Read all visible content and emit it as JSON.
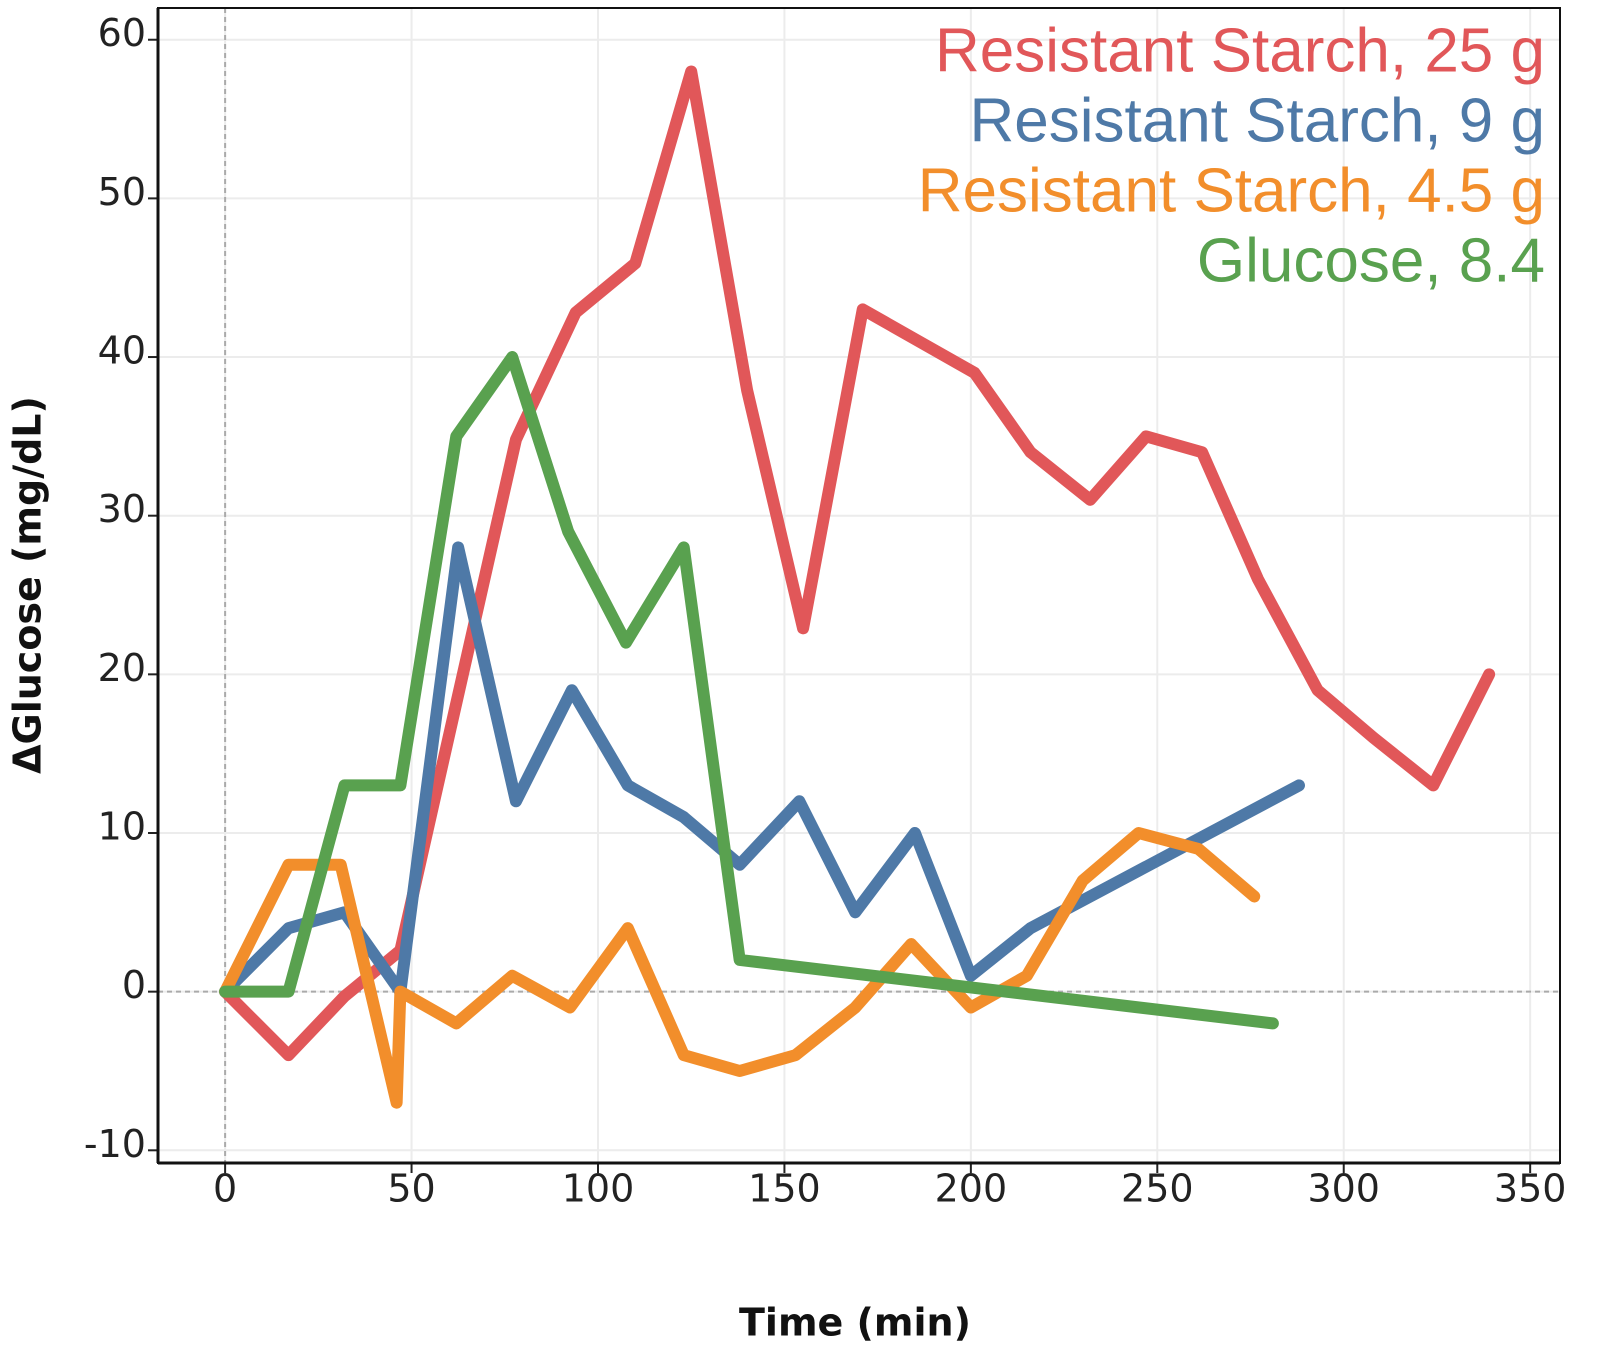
{
  "chart_data": {
    "type": "line",
    "xlabel": "Time (min)",
    "ylabel": "ΔGlucose (mg/dL)",
    "xlim": [
      -18,
      358
    ],
    "ylim": [
      -10.8,
      62
    ],
    "xticks": [
      0,
      50,
      100,
      150,
      200,
      250,
      300,
      350
    ],
    "yticks": [
      -10,
      0,
      10,
      20,
      30,
      40,
      50,
      60
    ],
    "grid": true,
    "zero_lines": true,
    "legend": "upper right",
    "series": [
      {
        "name": "Resistant Starch, 25 g",
        "color": "#e15759",
        "x": [
          0,
          17,
          32,
          47,
          78,
          94,
          110,
          125,
          140,
          155,
          171,
          186,
          201,
          216,
          232,
          247,
          262,
          277,
          293,
          308,
          324,
          339
        ],
        "values": [
          0,
          -4,
          -0.3,
          2.6,
          34.8,
          42.8,
          45.9,
          58,
          37.9,
          22.9,
          43,
          41,
          39,
          34,
          31,
          35,
          34,
          26,
          19,
          16,
          13,
          20
        ]
      },
      {
        "name": "Resistant Starch, 9 g",
        "color": "#4e79a7",
        "x": [
          0,
          17,
          32,
          47,
          62.5,
          78,
          93,
          108,
          123,
          138,
          154,
          169,
          185,
          200,
          216,
          288
        ],
        "values": [
          0,
          4,
          5,
          0,
          28,
          12,
          19,
          13,
          11,
          8,
          12,
          5,
          10,
          1,
          4,
          13
        ]
      },
      {
        "name": "Resistant Starch, 4.5 g",
        "color": "#f28e2b",
        "x": [
          0,
          17,
          31,
          46,
          47,
          62,
          77,
          92.5,
          108,
          123,
          138,
          153,
          169,
          184,
          200,
          215,
          230,
          245,
          261,
          276
        ],
        "values": [
          0,
          8,
          8,
          -7,
          0,
          -2,
          1,
          -1,
          4,
          -4,
          -5,
          -4,
          -1,
          3,
          -1,
          1,
          7,
          10,
          9,
          6
        ]
      },
      {
        "name": "Glucose, 8.4",
        "color": "#59a14f",
        "x": [
          0,
          17,
          32,
          47,
          62,
          77,
          92,
          107.5,
          123,
          138,
          281
        ],
        "values": [
          0,
          0,
          13,
          13,
          35,
          40,
          29,
          22,
          28,
          2,
          -2
        ]
      }
    ]
  }
}
